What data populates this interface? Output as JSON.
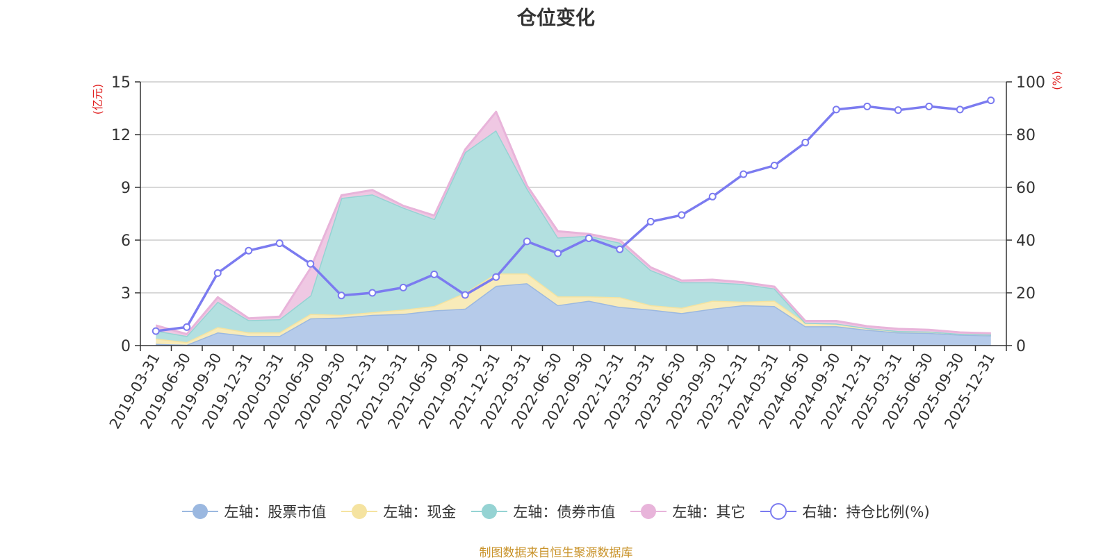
{
  "title": "仓位变化",
  "source": "制图数据来自恒生聚源数据库",
  "chart_data": {
    "type": "area",
    "title": "仓位变化",
    "left_axis": {
      "unit_label": "(亿元)",
      "min": 0,
      "max": 15,
      "ticks": [
        0,
        3,
        6,
        9,
        12,
        15
      ],
      "tick_labels": [
        "0",
        "3",
        "6",
        "9",
        "12",
        "15"
      ]
    },
    "right_axis": {
      "unit_label": "(%)",
      "min": 0,
      "max": 100,
      "ticks": [
        0,
        20,
        40,
        60,
        80,
        100
      ],
      "tick_labels": [
        "0",
        "20",
        "40",
        "60",
        "80",
        "100"
      ]
    },
    "categories": [
      "2019-03-31",
      "2019-06-30",
      "2019-09-30",
      "2019-12-31",
      "2020-03-31",
      "2020-06-30",
      "2020-09-30",
      "2020-12-31",
      "2021-03-31",
      "2021-06-30",
      "2021-09-30",
      "2021-12-31",
      "2022-03-31",
      "2022-06-30",
      "2022-09-30",
      "2022-12-31",
      "2023-03-31",
      "2023-06-30",
      "2023-09-30",
      "2023-12-31",
      "2024-03-31",
      "2024-06-30",
      "2024-09-30",
      "2024-12-31",
      "2025-03-31",
      "2025-06-30",
      "2025-09-30",
      "2025-12-31"
    ],
    "stacked_series": [
      {
        "name": "左轴：股票市值",
        "axis": "left",
        "color": "#9bb8e0",
        "fill": "#b6cbea",
        "values": [
          0.1,
          0.05,
          0.75,
          0.55,
          0.55,
          1.55,
          1.6,
          1.75,
          1.8,
          2.0,
          2.1,
          3.4,
          3.55,
          2.3,
          2.55,
          2.2,
          2.05,
          1.85,
          2.1,
          2.3,
          2.25,
          1.1,
          1.1,
          0.9,
          0.75,
          0.72,
          0.62,
          0.58
        ]
      },
      {
        "name": "左轴：现金",
        "axis": "left",
        "color": "#f5e3a0",
        "fill": "#f8ebb9",
        "values": [
          0.3,
          0.15,
          0.3,
          0.2,
          0.2,
          0.25,
          0.15,
          0.15,
          0.25,
          0.25,
          0.9,
          0.7,
          0.55,
          0.5,
          0.25,
          0.55,
          0.25,
          0.3,
          0.45,
          0.2,
          0.3,
          0.2,
          0.15,
          0.1,
          0.08,
          0.08,
          0.05,
          0.05
        ]
      },
      {
        "name": "左轴：债券市值",
        "axis": "left",
        "color": "#95d3d3",
        "fill": "#b3e0e0",
        "values": [
          0.45,
          0.35,
          1.45,
          0.7,
          0.75,
          1.05,
          6.65,
          6.7,
          5.8,
          4.95,
          8.0,
          8.15,
          4.85,
          3.35,
          3.45,
          3.1,
          2.0,
          1.45,
          1.05,
          1.0,
          0.7,
          0.0,
          0.0,
          0.0,
          0.0,
          0.0,
          0.0,
          0.0
        ]
      },
      {
        "name": "左轴：其它",
        "axis": "left",
        "color": "#e8b4da",
        "fill": "#efc8e3",
        "values": [
          0.3,
          0.1,
          0.25,
          0.1,
          0.15,
          1.55,
          0.15,
          0.25,
          0.1,
          0.2,
          0.15,
          1.05,
          0.15,
          0.35,
          0.1,
          0.15,
          0.15,
          0.1,
          0.15,
          0.1,
          0.1,
          0.1,
          0.15,
          0.1,
          0.12,
          0.1,
          0.08,
          0.07
        ]
      }
    ],
    "line_series": {
      "name": "右轴：持仓比例(%)",
      "axis": "right",
      "color": "#7b7bf0",
      "values": [
        5.5,
        7,
        27.5,
        36,
        38.8,
        31,
        19,
        20,
        22,
        27,
        19.2,
        26,
        39.5,
        35,
        40.7,
        36.5,
        47,
        49.5,
        56.5,
        65,
        68.3,
        77,
        89.5,
        90.7,
        89.3,
        90.7,
        89.5,
        93
      ]
    },
    "legend": [
      {
        "label": "左轴：股票市值",
        "color": "#9bb8e0",
        "kind": "filled"
      },
      {
        "label": "左轴：现金",
        "color": "#f5e3a0",
        "kind": "filled"
      },
      {
        "label": "左轴：债券市值",
        "color": "#95d3d3",
        "kind": "filled"
      },
      {
        "label": "左轴：其它",
        "color": "#e8b4da",
        "kind": "filled"
      },
      {
        "label": "右轴：持仓比例(%)",
        "color": "#7b7bf0",
        "kind": "hollow"
      }
    ],
    "legend_position": "bottom-center",
    "grid": true
  }
}
